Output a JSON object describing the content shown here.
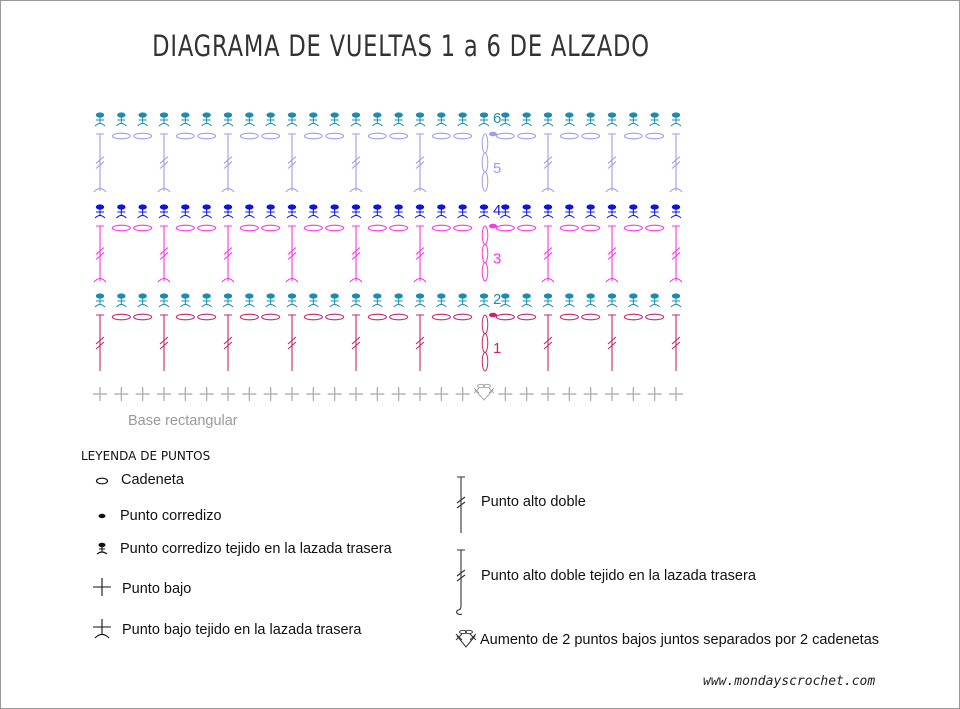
{
  "title": "DIAGRAMA DE VUELTAS 1 a 6 DE ALZADO",
  "diagram": {
    "stitches_per_row": 28,
    "turning_chain_position": 18,
    "double_crochet_every": 3,
    "base_row": {
      "label": "Base rectangular",
      "stitch": "punto bajo",
      "color": "#a8a8a8",
      "increase_symbol": "aumento"
    },
    "rows": [
      {
        "number": "1",
        "type": "punto alto doble + 2 cadenetas",
        "color": "#c8246a"
      },
      {
        "number": "2",
        "type": "punto corredizo lazada trasera",
        "color": "#1a8cb4"
      },
      {
        "number": "3",
        "type": "punto alto doble lazada trasera + 2 cadenetas",
        "color": "#ff33e8"
      },
      {
        "number": "4",
        "type": "punto corredizo lazada trasera",
        "color": "#0a14e6"
      },
      {
        "number": "5",
        "type": "punto alto doble lazada trasera + 2 cadenetas",
        "color": "#9c9cf0"
      },
      {
        "number": "6",
        "type": "punto corredizo lazada trasera",
        "color": "#1a8cb4"
      }
    ]
  },
  "legend": {
    "title": "LEYENDA DE PUNTOS",
    "items": [
      {
        "icon": "chain-icon",
        "label": "Cadeneta"
      },
      {
        "icon": "slip-stitch-icon",
        "label": "Punto corredizo"
      },
      {
        "icon": "slip-stitch-back-loop-icon",
        "label": "Punto corredizo tejido en la lazada trasera"
      },
      {
        "icon": "single-crochet-icon",
        "label": "Punto bajo"
      },
      {
        "icon": "single-crochet-back-loop-icon",
        "label": "Punto bajo tejido en la lazada trasera"
      },
      {
        "icon": "double-crochet-icon",
        "label": "Punto alto doble"
      },
      {
        "icon": "double-crochet-back-loop-icon",
        "label": "Punto alto doble tejido en la lazada trasera"
      },
      {
        "icon": "increase-icon",
        "label": "Aumento de 2 puntos bajos juntos separados por 2 cadenetas"
      }
    ]
  },
  "website": "www.mondayscrochet.com"
}
